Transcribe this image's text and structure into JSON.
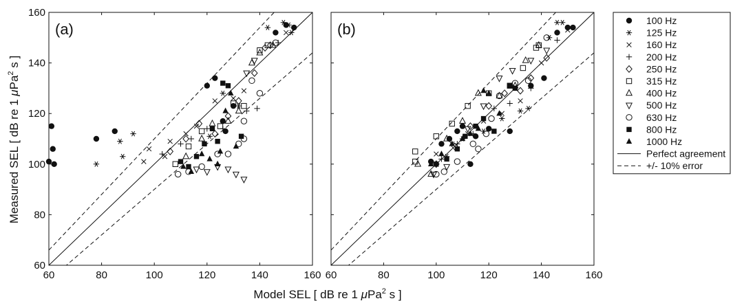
{
  "figure": {
    "xlabel_main": "Model SEL [ dB re 1 ",
    "xlabel_mu": "μ",
    "xlabel_tail": "Pa",
    "xlabel_sup": "2",
    "xlabel_end": " s ]",
    "ylabel_main": "Measured SEL [ dB re 1 ",
    "ylabel_mu": "μ",
    "ylabel_tail": "Pa",
    "ylabel_sup": "2",
    "ylabel_end": " s ]"
  },
  "chart_data": [
    {
      "type": "scatter",
      "panel_label": "(a)",
      "xlim": [
        60,
        160
      ],
      "ylim": [
        60,
        160
      ],
      "xticks": [
        60,
        80,
        100,
        120,
        140,
        160
      ],
      "yticks": [
        60,
        80,
        100,
        120,
        140,
        160
      ],
      "series": [
        {
          "name": "100 Hz",
          "marker": "filled-circle",
          "points": [
            [
              60,
              101
            ],
            [
              61,
              115
            ],
            [
              61.5,
              106
            ],
            [
              62,
              100
            ],
            [
              78,
              110
            ],
            [
              85,
              113
            ],
            [
              120,
              131
            ],
            [
              123,
              134
            ],
            [
              126,
              117
            ],
            [
              127,
              113
            ],
            [
              130,
              123
            ],
            [
              146,
              152
            ],
            [
              150,
              155
            ],
            [
              153,
              154
            ]
          ]
        },
        {
          "name": "125 Hz",
          "marker": "asterisk",
          "points": [
            [
              78,
              100
            ],
            [
              87,
              109
            ],
            [
              88,
              103
            ],
            [
              92,
              112
            ],
            [
              121,
              111
            ],
            [
              126,
              128
            ],
            [
              132,
              123
            ],
            [
              143,
              154
            ],
            [
              149,
              156
            ],
            [
              151,
              155
            ],
            [
              152,
              152
            ]
          ]
        },
        {
          "name": "160 Hz",
          "marker": "x",
          "points": [
            [
              96,
              101
            ],
            [
              98,
              106
            ],
            [
              104,
              103
            ],
            [
              106,
              109
            ],
            [
              112,
              112
            ],
            [
              116,
              115
            ],
            [
              123,
              125
            ],
            [
              130,
              126
            ],
            [
              134,
              129
            ],
            [
              150,
              152
            ]
          ]
        },
        {
          "name": "200 Hz",
          "marker": "plus",
          "points": [
            [
              103,
              104
            ],
            [
              110,
              108
            ],
            [
              114,
              110
            ],
            [
              120,
              114
            ],
            [
              126,
              114
            ],
            [
              135,
              121
            ],
            [
              139,
              122
            ],
            [
              147,
              148
            ]
          ]
        },
        {
          "name": "250 Hz",
          "marker": "diamond",
          "points": [
            [
              106,
              105
            ],
            [
              112,
              110
            ],
            [
              117,
              116
            ],
            [
              123,
              112
            ],
            [
              128,
              119
            ],
            [
              132,
              125
            ],
            [
              138,
              136
            ],
            [
              142,
              146
            ],
            [
              144,
              147
            ]
          ]
        },
        {
          "name": "315 Hz",
          "marker": "square",
          "points": [
            [
              108,
              100
            ],
            [
              113,
              107
            ],
            [
              118,
              113
            ],
            [
              125,
              115
            ],
            [
              130,
              124
            ],
            [
              134,
              123
            ],
            [
              140,
              145
            ],
            [
              143,
              147
            ]
          ]
        },
        {
          "name": "400 Hz",
          "marker": "triangle",
          "points": [
            [
              112,
              103
            ],
            [
              118,
              110
            ],
            [
              122,
              116
            ],
            [
              128,
              117
            ],
            [
              132,
              121
            ],
            [
              137,
              140
            ],
            [
              140,
              144
            ],
            [
              145,
              147
            ]
          ]
        },
        {
          "name": "500 Hz",
          "marker": "inv-triangle",
          "points": [
            [
              116,
              98
            ],
            [
              120,
              97
            ],
            [
              124,
              99
            ],
            [
              128,
              98
            ],
            [
              131,
              96
            ],
            [
              134,
              94
            ],
            [
              135,
              136
            ],
            [
              138,
              141
            ]
          ]
        },
        {
          "name": "630 Hz",
          "marker": "circle",
          "points": [
            [
              109,
              96
            ],
            [
              113,
              97
            ],
            [
              118,
              99
            ],
            [
              124,
              104
            ],
            [
              128,
              104
            ],
            [
              132,
              108
            ],
            [
              134,
              117
            ],
            [
              137,
              133
            ],
            [
              140,
              128
            ],
            [
              134,
              110
            ],
            [
              146,
              148
            ]
          ]
        },
        {
          "name": "800 Hz",
          "marker": "filled-square",
          "points": [
            [
              110,
              101
            ],
            [
              113,
              99
            ],
            [
              116,
              103
            ],
            [
              119,
              108
            ],
            [
              122,
              114
            ],
            [
              126,
              132
            ],
            [
              128,
              131
            ],
            [
              133,
              111
            ],
            [
              124,
              109
            ]
          ]
        },
        {
          "name": "1000 Hz",
          "marker": "filled-triangle",
          "points": [
            [
              111,
              99
            ],
            [
              114,
              97
            ],
            [
              118,
              104
            ],
            [
              121,
              102
            ],
            [
              125,
              105
            ],
            [
              127,
              121
            ],
            [
              129,
              128
            ],
            [
              131,
              107
            ],
            [
              124,
              100
            ]
          ]
        }
      ],
      "lines": [
        {
          "name": "Perfect agreement",
          "style": "solid",
          "slope": 1,
          "intercept": 0
        },
        {
          "name": "+/- 10% error",
          "style": "dashed",
          "slope": 1.1,
          "intercept": 0
        },
        {
          "name": "+/- 10% error",
          "style": "dashed",
          "slope": 0.9,
          "intercept": 0
        }
      ]
    },
    {
      "type": "scatter",
      "panel_label": "(b)",
      "xlim": [
        60,
        160
      ],
      "ylim": [
        60,
        160
      ],
      "xticks": [
        60,
        80,
        100,
        120,
        140,
        160
      ],
      "yticks": [
        60,
        80,
        100,
        120,
        140,
        160
      ],
      "series": [
        {
          "name": "100 Hz",
          "marker": "filled-circle",
          "points": [
            [
              98,
              101
            ],
            [
              102,
              108
            ],
            [
              105,
              110
            ],
            [
              108,
              113
            ],
            [
              110,
              115
            ],
            [
              113,
              100
            ],
            [
              115,
              111
            ],
            [
              120,
              114
            ],
            [
              128,
              113
            ],
            [
              136,
              131
            ],
            [
              141,
              134
            ],
            [
              146,
              152
            ],
            [
              150,
              154
            ],
            [
              152,
              154
            ]
          ]
        },
        {
          "name": "125 Hz",
          "marker": "asterisk",
          "points": [
            [
              104,
              103
            ],
            [
              110,
              110
            ],
            [
              118,
              113
            ],
            [
              125,
              118
            ],
            [
              132,
              121
            ],
            [
              135,
              122
            ],
            [
              143,
              150
            ],
            [
              146,
              156
            ],
            [
              148,
              156
            ]
          ]
        },
        {
          "name": "160 Hz",
          "marker": "x",
          "points": [
            [
              100,
              104
            ],
            [
              106,
              108
            ],
            [
              112,
              112
            ],
            [
              118,
              117
            ],
            [
              125,
              120
            ],
            [
              132,
              125
            ],
            [
              140,
              140
            ],
            [
              150,
              153
            ]
          ]
        },
        {
          "name": "200 Hz",
          "marker": "plus",
          "points": [
            [
              102,
              102
            ],
            [
              108,
              108
            ],
            [
              114,
              112
            ],
            [
              122,
              122
            ],
            [
              128,
              124
            ],
            [
              136,
              130
            ],
            [
              146,
              149
            ]
          ]
        },
        {
          "name": "250 Hz",
          "marker": "diamond",
          "points": [
            [
              100,
              100
            ],
            [
              107,
              107
            ],
            [
              113,
              115
            ],
            [
              120,
              123
            ],
            [
              126,
              128
            ],
            [
              132,
              129
            ],
            [
              136,
              134
            ],
            [
              142,
              142
            ]
          ]
        },
        {
          "name": "315 Hz",
          "marker": "square",
          "points": [
            [
              92,
              105
            ],
            [
              92,
              101
            ],
            [
              100,
              111
            ],
            [
              106,
              116
            ],
            [
              112,
              123
            ],
            [
              120,
              128
            ],
            [
              128,
              131
            ],
            [
              133,
              138
            ],
            [
              138,
              146
            ],
            [
              139,
              147
            ]
          ]
        },
        {
          "name": "400 Hz",
          "marker": "triangle",
          "points": [
            [
              93,
              100
            ],
            [
              98,
              96
            ],
            [
              104,
              110
            ],
            [
              110,
              117
            ],
            [
              116,
              128
            ],
            [
              124,
              127
            ],
            [
              130,
              131
            ],
            [
              134,
              141
            ],
            [
              139,
              147
            ]
          ]
        },
        {
          "name": "500 Hz",
          "marker": "inv-triangle",
          "points": [
            [
              99,
              96
            ],
            [
              104,
              99
            ],
            [
              112,
              114
            ],
            [
              118,
              123
            ],
            [
              124,
              134
            ],
            [
              129,
              137
            ],
            [
              136,
              141
            ],
            [
              142,
              145
            ]
          ]
        },
        {
          "name": "630 Hz",
          "marker": "circle",
          "points": [
            [
              100,
              96
            ],
            [
              103,
              97
            ],
            [
              108,
              101
            ],
            [
              114,
              108
            ],
            [
              116,
              106
            ],
            [
              119,
              112
            ],
            [
              121,
              118
            ],
            [
              124,
              127
            ],
            [
              130,
              132
            ],
            [
              135,
              133
            ],
            [
              142,
              150
            ]
          ]
        },
        {
          "name": "800 Hz",
          "marker": "filled-square",
          "points": [
            [
              100,
              100
            ],
            [
              104,
              102
            ],
            [
              108,
              106
            ],
            [
              111,
              111
            ],
            [
              115,
              115
            ],
            [
              118,
              118
            ],
            [
              122,
              113
            ],
            [
              128,
              131
            ],
            [
              130,
              130
            ]
          ]
        },
        {
          "name": "1000 Hz",
          "marker": "filled-triangle",
          "points": [
            [
              98,
              100
            ],
            [
              102,
              104
            ],
            [
              106,
              108
            ],
            [
              110,
              110
            ],
            [
              113,
              112
            ],
            [
              116,
              114
            ],
            [
              118,
              129
            ],
            [
              120,
              128
            ],
            [
              124,
              120
            ]
          ]
        }
      ],
      "lines": [
        {
          "name": "Perfect agreement",
          "style": "solid",
          "slope": 1,
          "intercept": 0
        },
        {
          "name": "+/- 10% error",
          "style": "dashed",
          "slope": 1.1,
          "intercept": 0
        },
        {
          "name": "+/- 10% error",
          "style": "dashed",
          "slope": 0.9,
          "intercept": 0
        }
      ]
    }
  ],
  "legend": {
    "placement": "right",
    "entries": [
      {
        "label": "100 Hz",
        "marker": "filled-circle"
      },
      {
        "label": "125 Hz",
        "marker": "asterisk"
      },
      {
        "label": "160 Hz",
        "marker": "x"
      },
      {
        "label": "200 Hz",
        "marker": "plus"
      },
      {
        "label": "250 Hz",
        "marker": "diamond"
      },
      {
        "label": "315 Hz",
        "marker": "square"
      },
      {
        "label": "400 Hz",
        "marker": "triangle"
      },
      {
        "label": "500 Hz",
        "marker": "inv-triangle"
      },
      {
        "label": "630 Hz",
        "marker": "circle"
      },
      {
        "label": "800 Hz",
        "marker": "filled-square"
      },
      {
        "label": "1000 Hz",
        "marker": "filled-triangle"
      },
      {
        "label": "Perfect agreement",
        "marker": "solid-line"
      },
      {
        "label": "+/- 10% error",
        "marker": "dashed-line"
      }
    ]
  }
}
